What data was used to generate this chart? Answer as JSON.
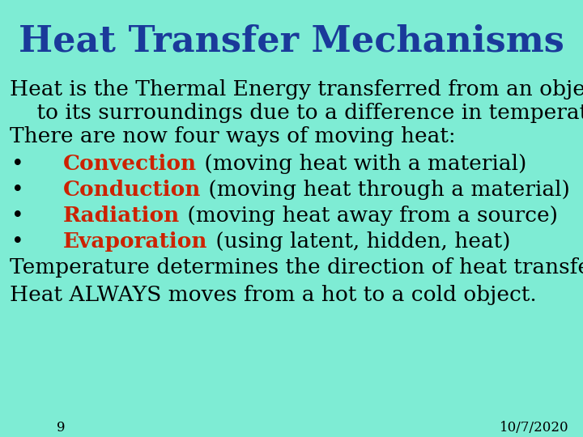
{
  "title": "Heat Transfer Mechanisms",
  "title_color": "#1a3a9a",
  "background_color": "#7eecd4",
  "body_text_color": "#000000",
  "bullet_label_color": "#cc2200",
  "body_fontsize": 19,
  "title_fontsize": 32,
  "footer_fontsize": 12,
  "page_number": "9",
  "date": "10/7/2020",
  "lines": [
    {
      "type": "body2",
      "text": "Heat is the Thermal Energy transferred from an object\n    to its surroundings due to a difference in temperature."
    },
    {
      "type": "body",
      "text": "There are now four ways of moving heat:"
    },
    {
      "type": "bullet",
      "bold_part": "Convection",
      "rest": " (moving heat with a material)"
    },
    {
      "type": "bullet",
      "bold_part": "Conduction",
      "rest": " (moving heat through a material)"
    },
    {
      "type": "bullet",
      "bold_part": "Radiation",
      "rest": " (moving heat away from a source)"
    },
    {
      "type": "bullet",
      "bold_part": "Evaporation",
      "rest": " (using latent, hidden, heat)"
    },
    {
      "type": "body",
      "text": "Temperature determines the direction of heat transfer."
    },
    {
      "type": "body",
      "text": "Heat ALWAYS moves from a hot to a cold object."
    }
  ]
}
